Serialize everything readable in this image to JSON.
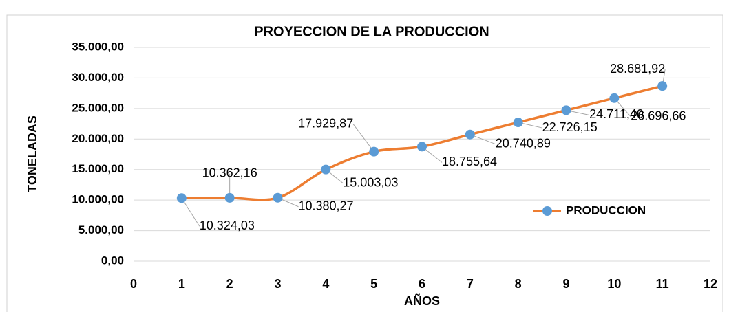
{
  "chart_data": {
    "type": "line",
    "title": "PROYECCION DE LA PRODUCCION",
    "x_label": "AÑOS",
    "y_label": "TONELADAS",
    "x": [
      1,
      2,
      3,
      4,
      5,
      6,
      7,
      8,
      9,
      10,
      11
    ],
    "series": [
      {
        "name": "PRODUCCION",
        "color": "#ED7D31",
        "marker_color": "#5B9BD5",
        "values": [
          10324.03,
          10362.16,
          10380.27,
          15003.03,
          17929.87,
          18755.64,
          20740.89,
          22726.15,
          24711.4,
          26696.66,
          28681.92
        ],
        "value_labels": [
          "10.324,03",
          "10.362,16",
          "10.380,27",
          "15.003,03",
          "17.929,87",
          "18.755,64",
          "20.740,89",
          "22.726,15",
          "24.711,40",
          "26.696,66",
          "28.681,92"
        ]
      }
    ],
    "xlim": [
      0,
      12
    ],
    "xticks": [
      0,
      1,
      2,
      3,
      4,
      5,
      6,
      7,
      8,
      9,
      10,
      11,
      12
    ],
    "ylim": [
      0,
      35000
    ],
    "yticks": [
      {
        "value": 0,
        "label": "0,00"
      },
      {
        "value": 5000,
        "label": "5.000,00"
      },
      {
        "value": 10000,
        "label": "10.000,00"
      },
      {
        "value": 15000,
        "label": "15.000,00"
      },
      {
        "value": 20000,
        "label": "20.000,00"
      },
      {
        "value": 25000,
        "label": "25.000,00"
      },
      {
        "value": 30000,
        "label": "30.000,00"
      },
      {
        "value": 35000,
        "label": "35.000,00"
      }
    ],
    "grid": true,
    "smooth": true
  }
}
